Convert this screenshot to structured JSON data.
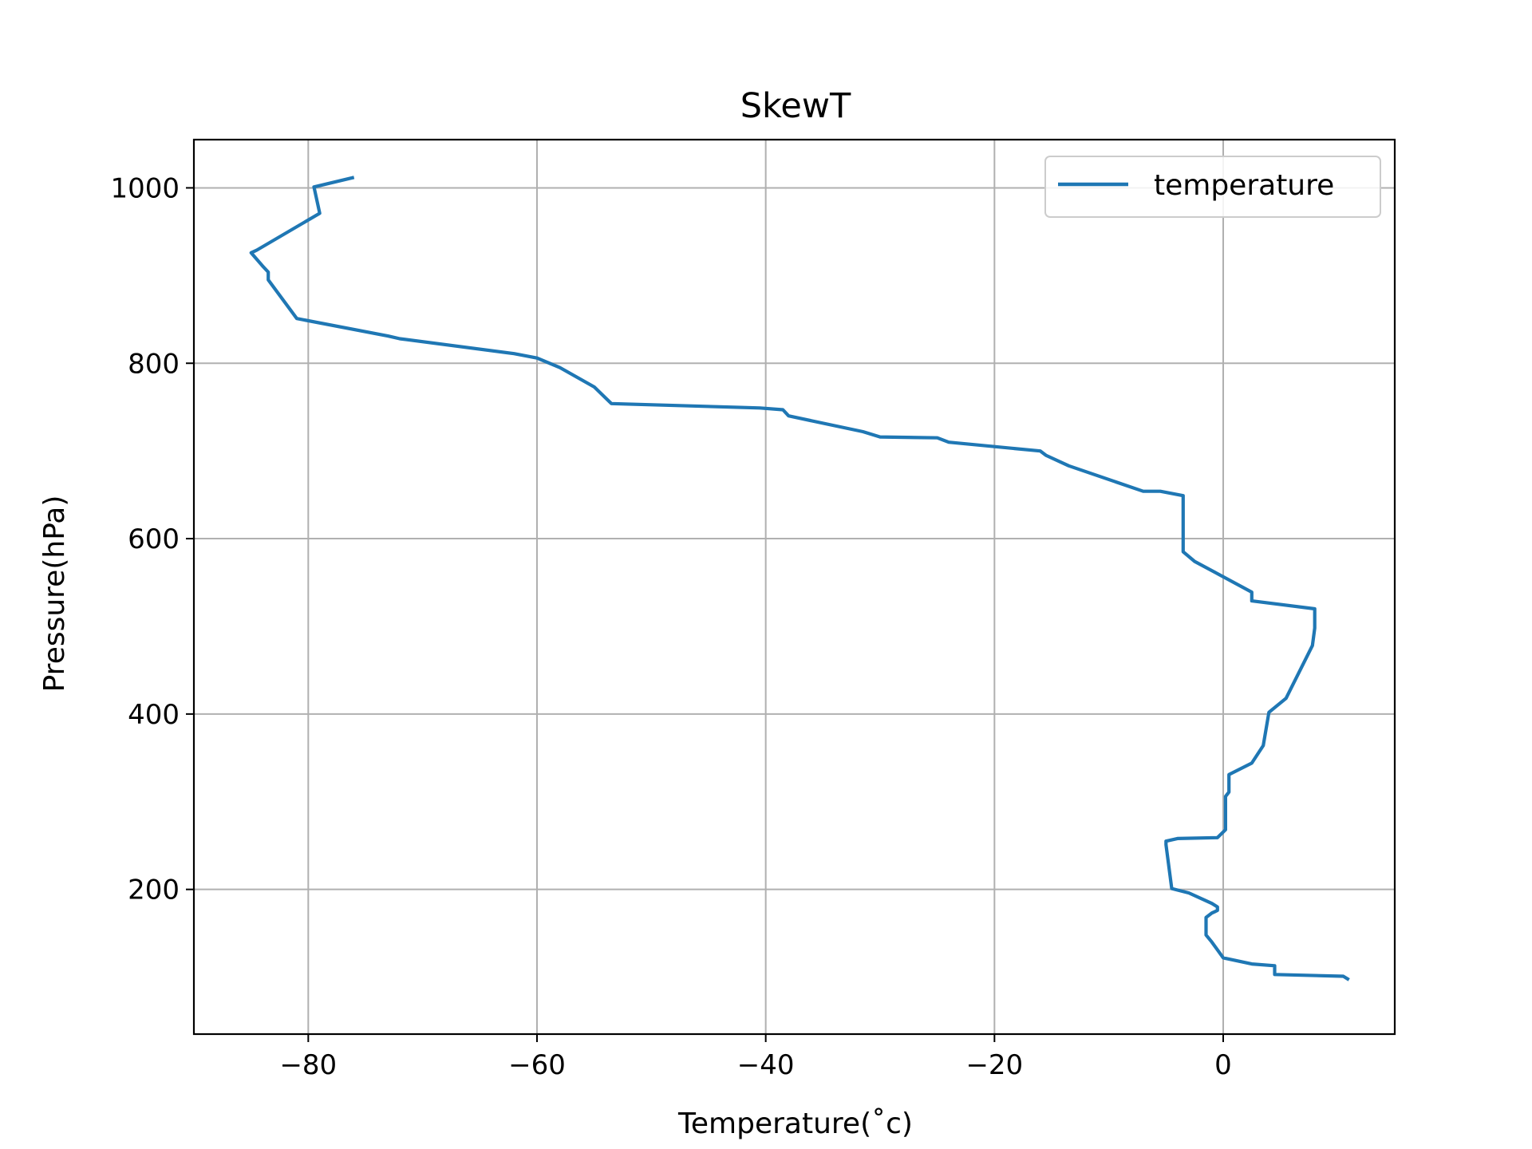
{
  "chart_data": {
    "type": "line",
    "title": "SkewT",
    "xlabel": "Temperature(˚c)",
    "ylabel": "Pressure(hPa)",
    "xlim": [
      -90,
      15
    ],
    "ylim": [
      35,
      1055
    ],
    "grid": true,
    "legend_position": "upper-right",
    "x_ticks": [
      -80,
      -60,
      -40,
      -20,
      0
    ],
    "y_ticks": [
      200,
      400,
      600,
      800,
      1000
    ],
    "x_tick_labels": [
      "−80",
      "−60",
      "−40",
      "−20",
      "0"
    ],
    "y_tick_labels": [
      "200",
      "400",
      "600",
      "800",
      "1000"
    ],
    "series": [
      {
        "name": "temperature",
        "color": "#1f77b4",
        "points": [
          [
            -76.0,
            1012
          ],
          [
            -79.5,
            1001
          ],
          [
            -79.0,
            971
          ],
          [
            -84.5,
            929
          ],
          [
            -85.0,
            926
          ],
          [
            -84.0,
            911
          ],
          [
            -83.5,
            904
          ],
          [
            -83.5,
            895
          ],
          [
            -81.0,
            851
          ],
          [
            -73.0,
            831
          ],
          [
            -72.0,
            828
          ],
          [
            -62.0,
            811
          ],
          [
            -60.0,
            806
          ],
          [
            -58.0,
            795
          ],
          [
            -55.0,
            773
          ],
          [
            -53.5,
            754
          ],
          [
            -40.5,
            749
          ],
          [
            -38.5,
            747
          ],
          [
            -38.0,
            740
          ],
          [
            -31.5,
            722
          ],
          [
            -30.0,
            716
          ],
          [
            -25.0,
            715
          ],
          [
            -24.0,
            710
          ],
          [
            -16.0,
            700
          ],
          [
            -15.5,
            695
          ],
          [
            -13.5,
            683
          ],
          [
            -7.0,
            654
          ],
          [
            -5.5,
            654
          ],
          [
            -3.5,
            649
          ],
          [
            -3.5,
            585
          ],
          [
            -2.5,
            574
          ],
          [
            2.5,
            539
          ],
          [
            2.5,
            529
          ],
          [
            8.0,
            520
          ],
          [
            8.0,
            498
          ],
          [
            7.8,
            478
          ],
          [
            5.5,
            418
          ],
          [
            4.0,
            402
          ],
          [
            3.5,
            364
          ],
          [
            2.5,
            344
          ],
          [
            0.5,
            331
          ],
          [
            0.5,
            311
          ],
          [
            0.2,
            306
          ],
          [
            0.2,
            268
          ],
          [
            -0.5,
            259
          ],
          [
            -4.0,
            258
          ],
          [
            -5.0,
            255
          ],
          [
            -5.0,
            251
          ],
          [
            -4.5,
            201
          ],
          [
            -3.0,
            196
          ],
          [
            -1.0,
            184
          ],
          [
            -0.5,
            180
          ],
          [
            -0.5,
            176
          ],
          [
            -1.0,
            173
          ],
          [
            -1.5,
            168
          ],
          [
            -1.5,
            155
          ],
          [
            -1.5,
            148
          ],
          [
            -1.0,
            140
          ],
          [
            0.0,
            122
          ],
          [
            2.5,
            115
          ],
          [
            4.5,
            113
          ],
          [
            4.5,
            103
          ],
          [
            10.5,
            101
          ],
          [
            11.0,
            97
          ]
        ]
      }
    ]
  }
}
